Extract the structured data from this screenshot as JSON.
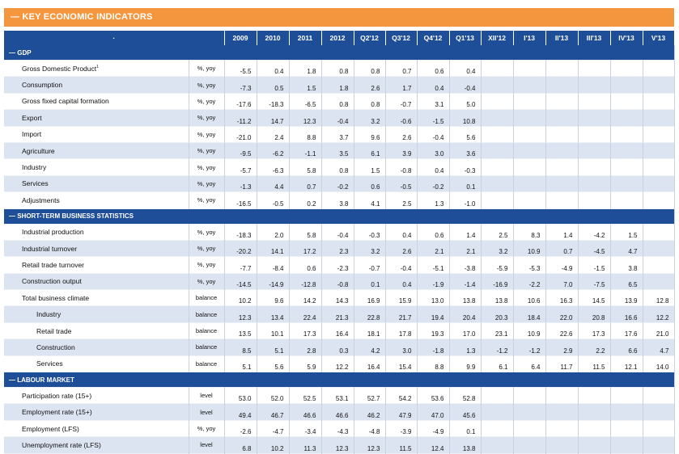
{
  "title": "— KEY ECONOMIC INDICATORS",
  "header": {
    "corner": "·",
    "columns": [
      "2009",
      "2010",
      "2011",
      "2012",
      "Q2'12",
      "Q3'12",
      "Q4'12",
      "Q1'13",
      "XII'12",
      "I'13",
      "II'13",
      "III'13",
      "IV'13",
      "V'13"
    ]
  },
  "sections": [
    {
      "title": "— GDP",
      "rows": [
        {
          "label": "Gross Domestic Product",
          "sup": "1",
          "unit": "%, yoy",
          "values": [
            "-5.5",
            "0.4",
            "1.8",
            "0.8",
            "0.8",
            "0.7",
            "0.6",
            "0.4",
            "",
            "",
            "",
            "",
            "",
            ""
          ]
        },
        {
          "label": "Consumption",
          "unit": "%, yoy",
          "values": [
            "-7.3",
            "0.5",
            "1.5",
            "1.8",
            "2.6",
            "1.7",
            "0.4",
            "-0.4",
            "",
            "",
            "",
            "",
            "",
            ""
          ]
        },
        {
          "label": "Gross fixed capital formation",
          "unit": "%, yoy",
          "values": [
            "-17.6",
            "-18.3",
            "-6.5",
            "0.8",
            "0.8",
            "-0.7",
            "3.1",
            "5.0",
            "",
            "",
            "",
            "",
            "",
            ""
          ]
        },
        {
          "label": "Export",
          "unit": "%, yoy",
          "values": [
            "-11.2",
            "14.7",
            "12.3",
            "-0.4",
            "3.2",
            "-0.6",
            "-1.5",
            "10.8",
            "",
            "",
            "",
            "",
            "",
            ""
          ]
        },
        {
          "label": "Import",
          "unit": "%, yoy",
          "values": [
            "-21.0",
            "2.4",
            "8.8",
            "3.7",
            "9.6",
            "2.6",
            "-0.4",
            "5.6",
            "",
            "",
            "",
            "",
            "",
            ""
          ]
        },
        {
          "label": "Agriculture",
          "unit": "%, yoy",
          "values": [
            "-9.5",
            "-6.2",
            "-1.1",
            "3.5",
            "6.1",
            "3.9",
            "3.0",
            "3.6",
            "",
            "",
            "",
            "",
            "",
            ""
          ]
        },
        {
          "label": "Industry",
          "unit": "%, yoy",
          "values": [
            "-5.7",
            "-6.3",
            "5.8",
            "0.8",
            "1.5",
            "-0.8",
            "0.4",
            "-0.3",
            "",
            "",
            "",
            "",
            "",
            ""
          ]
        },
        {
          "label": "Services",
          "unit": "%, yoy",
          "values": [
            "-1.3",
            "4.4",
            "0.7",
            "-0.2",
            "0.6",
            "-0.5",
            "-0.2",
            "0.1",
            "",
            "",
            "",
            "",
            "",
            ""
          ]
        },
        {
          "label": "Adjustments",
          "unit": "%, yoy",
          "values": [
            "-16.5",
            "-0.5",
            "0.2",
            "3.8",
            "4.1",
            "2.5",
            "1.3",
            "-1.0",
            "",
            "",
            "",
            "",
            "",
            ""
          ]
        }
      ]
    },
    {
      "title": "— SHORT-TERM BUSINESS STATISTICS",
      "rows": [
        {
          "label": "Industrial production",
          "unit": "%, yoy",
          "values": [
            "-18.3",
            "2.0",
            "5.8",
            "-0.4",
            "-0.3",
            "0.4",
            "0.6",
            "1.4",
            "2.5",
            "8.3",
            "1.4",
            "-4.2",
            "1.5",
            ""
          ]
        },
        {
          "label": "Industrial turnover",
          "unit": "%, yoy",
          "values": [
            "-20.2",
            "14.1",
            "17.2",
            "2.3",
            "3.2",
            "2.6",
            "2.1",
            "2.1",
            "3.2",
            "10.9",
            "0.7",
            "-4.5",
            "4.7",
            ""
          ]
        },
        {
          "label": "Retail trade turnover",
          "unit": "%, yoy",
          "values": [
            "-7.7",
            "-8.4",
            "0.6",
            "-2.3",
            "-0.7",
            "-0.4",
            "-5.1",
            "-3.8",
            "-5.9",
            "-5.3",
            "-4.9",
            "-1.5",
            "3.8",
            ""
          ]
        },
        {
          "label": "Construction output",
          "unit": "%, yoy",
          "values": [
            "-14.5",
            "-14.9",
            "-12.8",
            "-0.8",
            "0.1",
            "0.4",
            "-1.9",
            "-1.4",
            "-16.9",
            "-2.2",
            "7.0",
            "-7.5",
            "6.5",
            ""
          ]
        },
        {
          "label": "Total business climate",
          "unit": "balance",
          "values": [
            "10.2",
            "9.6",
            "14.2",
            "14.3",
            "16.9",
            "15.9",
            "13.0",
            "13.8",
            "13.8",
            "10.6",
            "16.3",
            "14.5",
            "13.9",
            "12.8"
          ]
        },
        {
          "label": "Industry",
          "sub": true,
          "unit": "balance",
          "values": [
            "12.3",
            "13.4",
            "22.4",
            "21.3",
            "22.8",
            "21.7",
            "19.4",
            "20.4",
            "20.3",
            "18.4",
            "22.0",
            "20.8",
            "16.6",
            "12.2"
          ]
        },
        {
          "label": "Retail trade",
          "sub": true,
          "unit": "balance",
          "values": [
            "13.5",
            "10.1",
            "17.3",
            "16.4",
            "18.1",
            "17.8",
            "19.3",
            "17.0",
            "23.1",
            "10.9",
            "22.6",
            "17.3",
            "17.6",
            "21.0"
          ]
        },
        {
          "label": "Construction",
          "sub": true,
          "unit": "balance",
          "values": [
            "8.5",
            "5.1",
            "2.8",
            "0.3",
            "4.2",
            "3.0",
            "-1.8",
            "1.3",
            "-1.2",
            "-1.2",
            "2.9",
            "2.2",
            "6.6",
            "4.7"
          ]
        },
        {
          "label": "Services",
          "sub": true,
          "unit": "balance",
          "values": [
            "5.1",
            "5.6",
            "5.9",
            "12.2",
            "16.4",
            "15.4",
            "8.8",
            "9.9",
            "6.1",
            "6.4",
            "11.7",
            "11.5",
            "12.1",
            "14.0"
          ]
        }
      ]
    },
    {
      "title": "— LABOUR MARKET",
      "rows": [
        {
          "label": "Participation rate (15+)",
          "unit": "level",
          "values": [
            "53.0",
            "52.0",
            "52.5",
            "53.1",
            "52.7",
            "54.2",
            "53.6",
            "52.8",
            "",
            "",
            "",
            "",
            "",
            ""
          ]
        },
        {
          "label": "Employment rate (15+)",
          "unit": "level",
          "values": [
            "49.4",
            "46.7",
            "46.6",
            "46.6",
            "46.2",
            "47.9",
            "47.0",
            "45.6",
            "",
            "",
            "",
            "",
            "",
            ""
          ]
        },
        {
          "label": "Employment (LFS)",
          "unit": "%, yoy",
          "values": [
            "-2.6",
            "-4.7",
            "-3.4",
            "-4.3",
            "-4.8",
            "-3.9",
            "-4.9",
            "0.1",
            "",
            "",
            "",
            "",
            "",
            ""
          ]
        },
        {
          "label": "Unemployment rate (LFS)",
          "unit": "level",
          "values": [
            "6.8",
            "10.2",
            "11.3",
            "12.3",
            "12.3",
            "11.5",
            "12.4",
            "13.8",
            "",
            "",
            "",
            "",
            "",
            ""
          ]
        }
      ]
    }
  ]
}
